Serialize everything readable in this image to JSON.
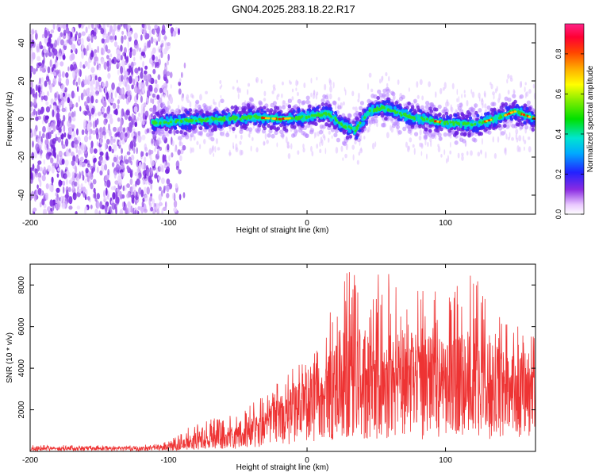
{
  "title": "GN04.2025.283.18.22.R17",
  "chart_data": [
    {
      "type": "heatmap",
      "panel": "spectrogram",
      "xlabel": "Height of straight line (km)",
      "ylabel": "Frequency (Hz)",
      "xlim": [
        -200,
        165
      ],
      "ylim": [
        -50,
        50
      ],
      "x_ticks": [
        -200,
        -100,
        0,
        100
      ],
      "y_ticks": [
        -40,
        -20,
        0,
        20,
        40
      ],
      "colorbar": {
        "label": "Normalized spectral amplitude",
        "range": [
          0,
          0.95
        ],
        "ticks": [
          0.0,
          0.2,
          0.4,
          0.6,
          0.8
        ],
        "tick_labels": [
          "0.0",
          "0.2",
          "0.4",
          "0.6",
          "0.8"
        ]
      },
      "features": {
        "noise_region_x": [
          -200,
          -100
        ],
        "signal_band_center": [
          {
            "x": -110,
            "y": -2
          },
          {
            "x": -90,
            "y": -1
          },
          {
            "x": -60,
            "y": 0
          },
          {
            "x": -40,
            "y": 1
          },
          {
            "x": -20,
            "y": 0
          },
          {
            "x": 0,
            "y": 1
          },
          {
            "x": 15,
            "y": 3
          },
          {
            "x": 25,
            "y": -3
          },
          {
            "x": 35,
            "y": -6
          },
          {
            "x": 45,
            "y": 4
          },
          {
            "x": 55,
            "y": 6
          },
          {
            "x": 75,
            "y": 1
          },
          {
            "x": 100,
            "y": -2
          },
          {
            "x": 120,
            "y": -3
          },
          {
            "x": 140,
            "y": 1
          },
          {
            "x": 150,
            "y": 4
          },
          {
            "x": 165,
            "y": 0
          }
        ]
      }
    },
    {
      "type": "line",
      "panel": "snr",
      "xlabel": "Height of straight line (km)",
      "ylabel": "SNR (10 * v/v)",
      "xlim": [
        -200,
        165
      ],
      "ylim": [
        0,
        9000
      ],
      "x_ticks": [
        -200,
        -100,
        0,
        100
      ],
      "y_ticks": [
        2000,
        4000,
        6000,
        8000
      ],
      "series": [
        {
          "name": "SNR",
          "color": "#ee3333",
          "envelope_upper": [
            {
              "x": -200,
              "y": 300
            },
            {
              "x": -150,
              "y": 300
            },
            {
              "x": -120,
              "y": 300
            },
            {
              "x": -100,
              "y": 500
            },
            {
              "x": -85,
              "y": 1200
            },
            {
              "x": -70,
              "y": 1600
            },
            {
              "x": -50,
              "y": 1800
            },
            {
              "x": -30,
              "y": 2800
            },
            {
              "x": -10,
              "y": 4000
            },
            {
              "x": 0,
              "y": 4500
            },
            {
              "x": 10,
              "y": 5500
            },
            {
              "x": 20,
              "y": 7500
            },
            {
              "x": 25,
              "y": 8800
            },
            {
              "x": 35,
              "y": 8700
            },
            {
              "x": 50,
              "y": 8500
            },
            {
              "x": 60,
              "y": 8600
            },
            {
              "x": 80,
              "y": 8000
            },
            {
              "x": 100,
              "y": 7500
            },
            {
              "x": 120,
              "y": 8800
            },
            {
              "x": 140,
              "y": 6500
            },
            {
              "x": 165,
              "y": 5500
            }
          ],
          "envelope_mean": [
            {
              "x": -200,
              "y": 150
            },
            {
              "x": -150,
              "y": 150
            },
            {
              "x": -120,
              "y": 160
            },
            {
              "x": -100,
              "y": 250
            },
            {
              "x": -85,
              "y": 500
            },
            {
              "x": -70,
              "y": 700
            },
            {
              "x": -50,
              "y": 800
            },
            {
              "x": -30,
              "y": 1500
            },
            {
              "x": -10,
              "y": 2400
            },
            {
              "x": 0,
              "y": 2800
            },
            {
              "x": 10,
              "y": 3200
            },
            {
              "x": 20,
              "y": 3800
            },
            {
              "x": 25,
              "y": 4100
            },
            {
              "x": 35,
              "y": 4000
            },
            {
              "x": 50,
              "y": 4000
            },
            {
              "x": 60,
              "y": 4000
            },
            {
              "x": 80,
              "y": 3800
            },
            {
              "x": 100,
              "y": 3700
            },
            {
              "x": 120,
              "y": 3800
            },
            {
              "x": 140,
              "y": 3500
            },
            {
              "x": 165,
              "y": 3500
            }
          ]
        }
      ]
    }
  ]
}
